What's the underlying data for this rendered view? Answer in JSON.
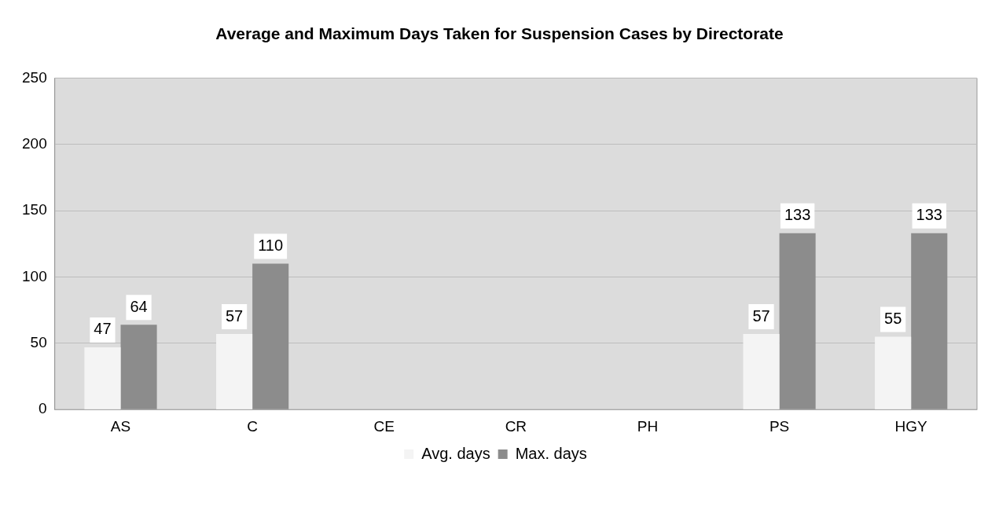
{
  "chart_data": {
    "type": "bar",
    "title": "Average and Maximum Days Taken for Suspension Cases by Directorate",
    "categories": [
      "AS",
      "C",
      "CE",
      "CR",
      "PH",
      "PS",
      "HGY"
    ],
    "series": [
      {
        "name": "Avg. days",
        "color": "#f4f4f4",
        "values": [
          47,
          57,
          null,
          null,
          null,
          57,
          55
        ]
      },
      {
        "name": "Max. days",
        "color": "#8c8c8c",
        "values": [
          64,
          110,
          null,
          null,
          null,
          133,
          133
        ]
      }
    ],
    "ylim": [
      0,
      250
    ],
    "yticks": [
      0,
      50,
      100,
      150,
      200,
      250
    ],
    "grid": "y",
    "legend": "bottom",
    "data_labels": true
  }
}
